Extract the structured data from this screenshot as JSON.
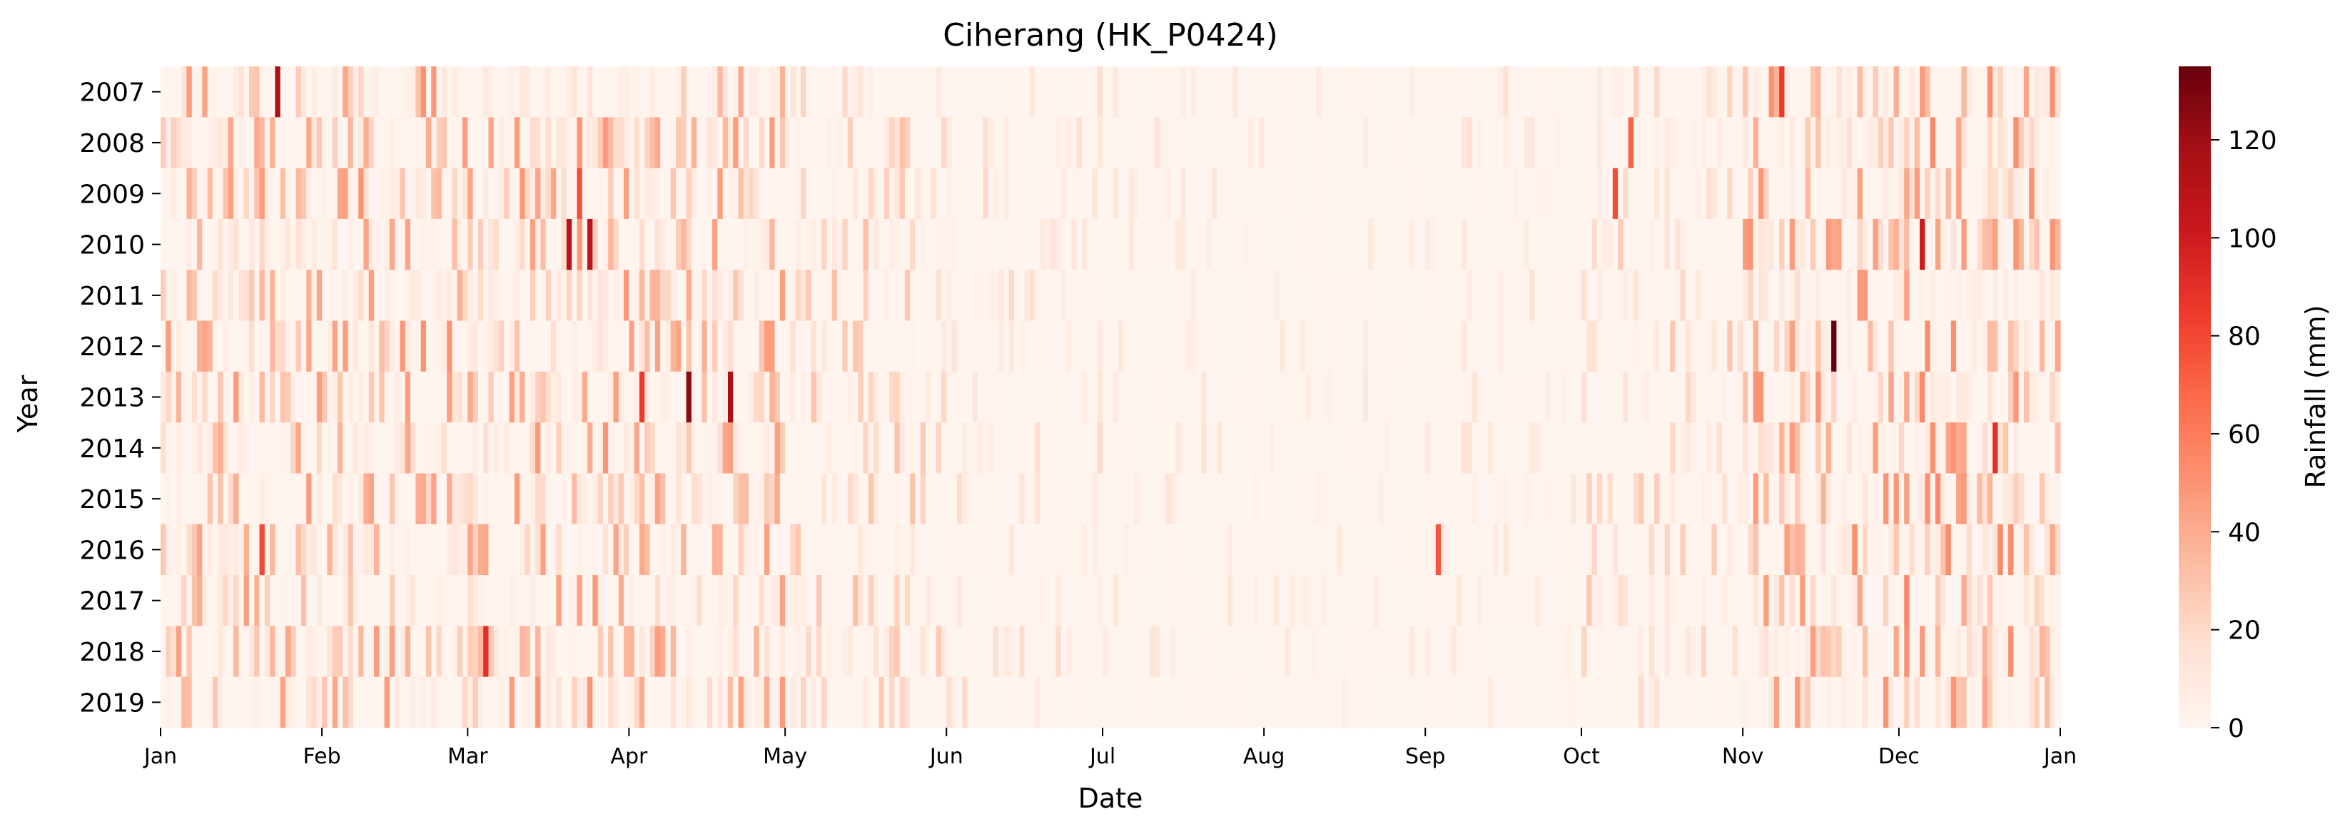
{
  "chart_data": {
    "type": "heatmap",
    "title": "Ciherang (HK_P0424)",
    "xlabel": "Date",
    "ylabel": "Year",
    "colorbar_label": "Rainfall (mm)",
    "years": [
      "2007",
      "2008",
      "2009",
      "2010",
      "2011",
      "2012",
      "2013",
      "2014",
      "2015",
      "2016",
      "2017",
      "2018",
      "2019"
    ],
    "months": [
      "Jan",
      "Feb",
      "Mar",
      "Apr",
      "May",
      "Jun",
      "Jul",
      "Aug",
      "Sep",
      "Oct",
      "Nov",
      "Dec",
      "Jan"
    ],
    "colorbar_ticks": [
      "0",
      "20",
      "40",
      "60",
      "80",
      "100",
      "120"
    ],
    "vmin": 0,
    "vmax": 135,
    "colormap": "Reds",
    "colorscale": [
      "#fff5f0",
      "#fee0d2",
      "#fcbba1",
      "#fc9272",
      "#fb6a4a",
      "#ef3b2c",
      "#cb181d",
      "#a50f15",
      "#67000d"
    ],
    "days_per_year": 365,
    "rainfall_seasonality": {
      "description_months": [
        "Jan",
        "Feb",
        "Mar",
        "Apr",
        "May",
        "Jun",
        "Jul",
        "Aug",
        "Sep",
        "Oct",
        "Nov",
        "Dec"
      ],
      "mean_intensity_relative": [
        0.55,
        0.6,
        0.6,
        0.55,
        0.35,
        0.2,
        0.12,
        0.08,
        0.15,
        0.3,
        0.6,
        0.65
      ]
    },
    "notable_peaks": [
      {
        "year": "2007",
        "date": "Jan 23",
        "value": 115
      },
      {
        "year": "2009",
        "date": "Mar 22",
        "value": 78
      },
      {
        "year": "2010",
        "date": "Mar 20",
        "value": 110
      },
      {
        "year": "2010",
        "date": "Mar 24",
        "value": 108
      },
      {
        "year": "2010",
        "date": "Dec 5",
        "value": 100
      },
      {
        "year": "2012",
        "date": "Nov 18",
        "value": 135
      },
      {
        "year": "2013",
        "date": "Apr 12",
        "value": 125
      },
      {
        "year": "2013",
        "date": "Apr 20",
        "value": 115
      },
      {
        "year": "2013",
        "date": "Apr 3",
        "value": 85
      },
      {
        "year": "2014",
        "date": "Dec 19",
        "value": 90
      },
      {
        "year": "2018",
        "date": "Mar 4",
        "value": 90
      },
      {
        "year": "2016",
        "date": "Jan 20",
        "value": 80
      },
      {
        "year": "2016",
        "date": "Sep 3",
        "value": 75
      },
      {
        "year": "2008",
        "date": "Oct 10",
        "value": 70
      },
      {
        "year": "2007",
        "date": "Nov 8",
        "value": 85
      },
      {
        "year": "2009",
        "date": "Oct 7",
        "value": 78
      }
    ]
  }
}
